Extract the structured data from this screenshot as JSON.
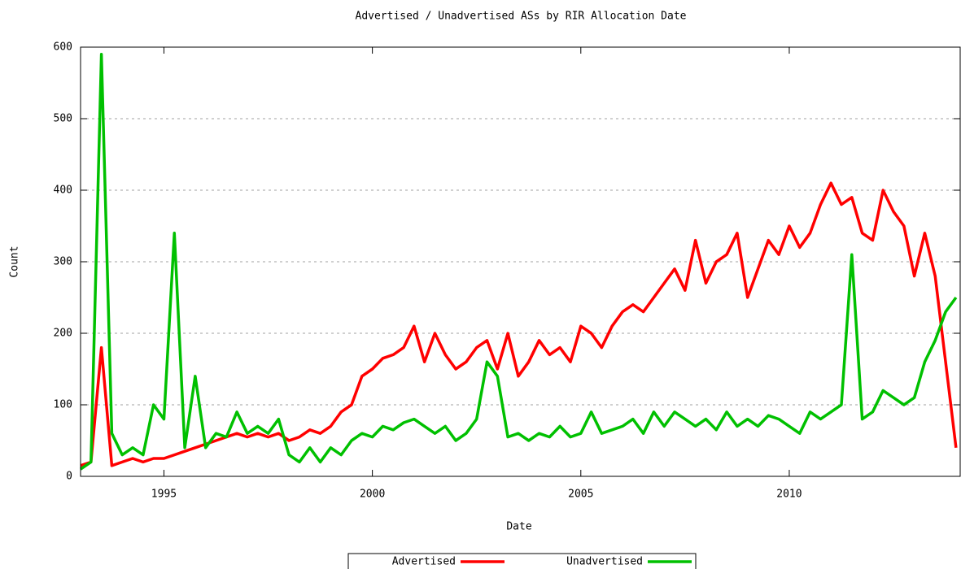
{
  "chart_data": {
    "type": "line",
    "title": "Advertised / Unadvertised ASs by RIR Allocation Date",
    "x_label": "Date",
    "y_label": "Count",
    "x": [
      1993,
      1993.25,
      1993.5,
      1993.75,
      1994,
      1994.25,
      1994.5,
      1994.75,
      1995,
      1995.25,
      1995.5,
      1995.75,
      1996,
      1996.25,
      1996.5,
      1996.75,
      1997,
      1997.25,
      1997.5,
      1997.75,
      1998,
      1998.25,
      1998.5,
      1998.75,
      1999,
      1999.25,
      1999.5,
      1999.75,
      2000,
      2000.25,
      2000.5,
      2000.75,
      2001,
      2001.25,
      2001.5,
      2001.75,
      2002,
      2002.25,
      2002.5,
      2002.75,
      2003,
      2003.25,
      2003.5,
      2003.75,
      2004,
      2004.25,
      2004.5,
      2004.75,
      2005,
      2005.25,
      2005.5,
      2005.75,
      2006,
      2006.25,
      2006.5,
      2006.75,
      2007,
      2007.25,
      2007.5,
      2007.75,
      2008,
      2008.25,
      2008.5,
      2008.75,
      2009,
      2009.25,
      2009.5,
      2009.75,
      2010,
      2010.25,
      2010.5,
      2010.75,
      2011,
      2011.25,
      2011.5,
      2011.75,
      2012,
      2012.25,
      2012.5,
      2012.75,
      2013,
      2013.25,
      2013.5,
      2013.75,
      2014
    ],
    "series": [
      {
        "name": "Advertised",
        "color": "#ff0000",
        "values": [
          15,
          20,
          180,
          15,
          20,
          25,
          20,
          25,
          25,
          30,
          35,
          40,
          45,
          50,
          55,
          60,
          55,
          60,
          55,
          60,
          50,
          55,
          65,
          60,
          70,
          90,
          100,
          140,
          150,
          165,
          170,
          180,
          210,
          160,
          200,
          170,
          150,
          160,
          180,
          190,
          150,
          200,
          140,
          160,
          190,
          170,
          180,
          160,
          210,
          200,
          180,
          210,
          230,
          240,
          230,
          250,
          270,
          290,
          260,
          330,
          270,
          300,
          310,
          340,
          250,
          290,
          330,
          310,
          350,
          320,
          340,
          380,
          410,
          380,
          390,
          340,
          330,
          400,
          370,
          350,
          280,
          340,
          280,
          160,
          40
        ]
      },
      {
        "name": "Unadvertised",
        "color": "#00c000",
        "values": [
          10,
          20,
          590,
          60,
          30,
          40,
          30,
          100,
          80,
          340,
          40,
          140,
          40,
          60,
          55,
          90,
          60,
          70,
          60,
          80,
          30,
          20,
          40,
          20,
          40,
          30,
          50,
          60,
          55,
          70,
          65,
          75,
          80,
          70,
          60,
          70,
          50,
          60,
          80,
          160,
          140,
          55,
          60,
          50,
          60,
          55,
          70,
          55,
          60,
          90,
          60,
          65,
          70,
          80,
          60,
          90,
          70,
          90,
          80,
          70,
          80,
          65,
          90,
          70,
          80,
          70,
          85,
          80,
          70,
          60,
          90,
          80,
          90,
          100,
          310,
          80,
          90,
          120,
          110,
          100,
          110,
          160,
          190,
          230,
          250
        ]
      }
    ],
    "xlim": [
      1993,
      2014.1
    ],
    "xticks": [
      1995,
      2000,
      2005,
      2010
    ],
    "ylim": [
      0,
      600
    ],
    "yticks": [
      0,
      100,
      200,
      300,
      400,
      500,
      600
    ],
    "grid": "y",
    "legend": "bottom"
  }
}
